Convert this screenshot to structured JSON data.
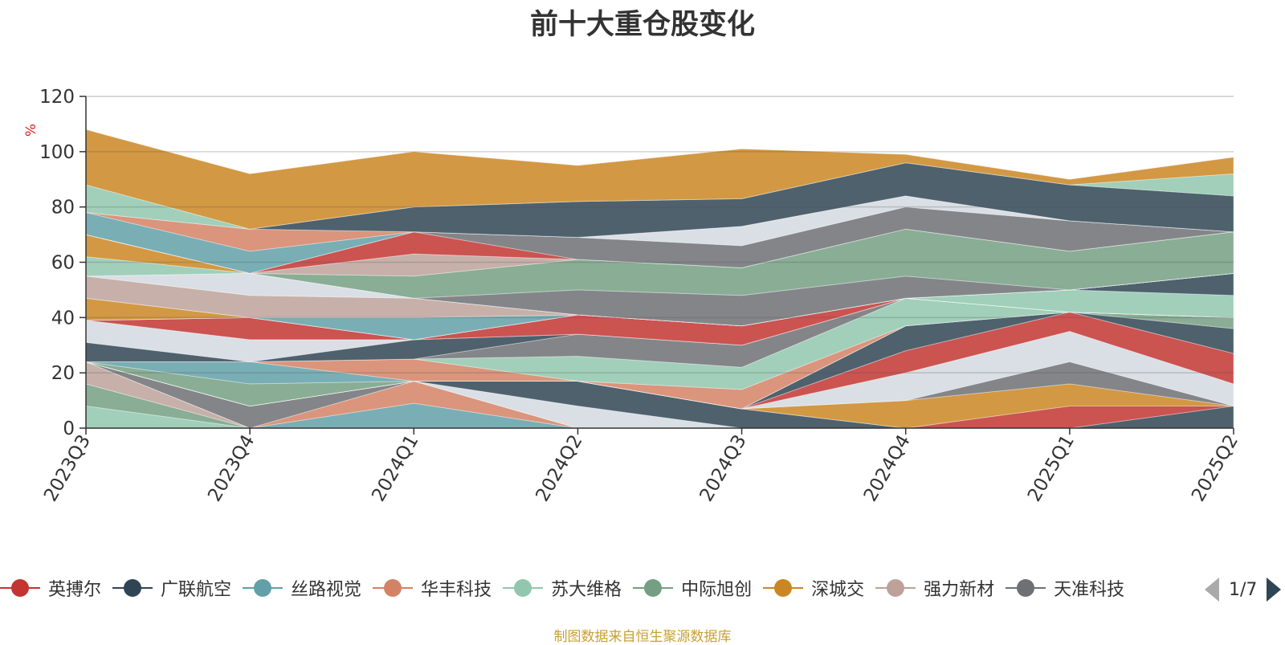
{
  "title": "前十大重仓股变化",
  "source": "制图数据来自恒生聚源数据库",
  "legend_page": "1/7",
  "legend_visible": [
    "英搏尔",
    "广联航空",
    "丝路视觉",
    "华丰科技",
    "苏大维格",
    "中际旭创",
    "深城交",
    "强力新材",
    "天准科技"
  ],
  "legend_colors": [
    "#c23531",
    "#2f4554",
    "#61a0a8",
    "#d48265",
    "#91c7ae",
    "#749f83",
    "#ca8622",
    "#bda29a",
    "#6e7074"
  ],
  "chart_data": {
    "type": "area",
    "stacked": true,
    "categories": [
      "2023Q3",
      "2023Q4",
      "2024Q1",
      "2024Q2",
      "2024Q3",
      "2024Q4",
      "2025Q1",
      "2025Q2"
    ],
    "ylabel": "%",
    "ylim": [
      0,
      120
    ],
    "yticks": [
      0,
      20,
      40,
      60,
      80,
      100,
      120
    ],
    "legend_position": "bottom",
    "series": [
      {
        "name": "苏大维格",
        "color": "#91c7ae",
        "values": [
          8,
          0,
          0,
          0,
          0,
          0,
          0,
          0
        ]
      },
      {
        "name": "中际旭创",
        "color": "#749f83",
        "values": [
          8,
          0,
          0,
          0,
          0,
          0,
          0,
          0
        ]
      },
      {
        "name": "强力新材",
        "color": "#bda29a",
        "values": [
          8,
          0,
          0,
          0,
          0,
          0,
          0,
          0
        ]
      },
      {
        "name": "丝路视觉",
        "color": "#61a0a8",
        "values": [
          0,
          0,
          9,
          0,
          0,
          0,
          0,
          0
        ]
      },
      {
        "name": "华丰科技",
        "color": "#d48265",
        "values": [
          0,
          0,
          8,
          0,
          0,
          0,
          0,
          0
        ]
      },
      {
        "name": "天准科技",
        "color": "#6e7074",
        "values": [
          0,
          8,
          0,
          0,
          0,
          0,
          0,
          0
        ]
      },
      {
        "name": "",
        "color": "#d4d9e0",
        "values": [
          0,
          0,
          0,
          8,
          0,
          0,
          0,
          0
        ]
      },
      {
        "name": "广联航空",
        "color": "#2f4554",
        "values": [
          0,
          0,
          0,
          9,
          7,
          0,
          0,
          8
        ]
      },
      {
        "name": "英搏尔",
        "color": "#c23531",
        "values": [
          0,
          0,
          0,
          0,
          0,
          0,
          8,
          0
        ]
      },
      {
        "name": "深城交",
        "color": "#ca8622",
        "values": [
          0,
          0,
          0,
          0,
          0,
          10,
          8,
          0
        ]
      },
      {
        "name": "",
        "color": "#6e7074",
        "values": [
          0,
          0,
          0,
          0,
          0,
          0,
          8,
          0
        ]
      },
      {
        "name": "",
        "color": "#d4d9e0",
        "values": [
          0,
          0,
          0,
          0,
          0,
          10,
          11,
          8
        ]
      },
      {
        "name": "",
        "color": "#c23531",
        "values": [
          0,
          0,
          0,
          0,
          0,
          8,
          7,
          11
        ]
      },
      {
        "name": "",
        "color": "#2f4554",
        "values": [
          0,
          0,
          0,
          0,
          0,
          9,
          0,
          9
        ]
      },
      {
        "name": "",
        "color": "#749f83",
        "values": [
          0,
          8,
          0,
          0,
          0,
          0,
          0,
          4
        ]
      },
      {
        "name": "",
        "color": "#61a0a8",
        "values": [
          0,
          8,
          0,
          0,
          0,
          0,
          0,
          0
        ]
      },
      {
        "name": "",
        "color": "#d48265",
        "values": [
          0,
          0,
          8,
          0,
          7,
          0,
          0,
          0
        ]
      },
      {
        "name": "",
        "color": "#91c7ae",
        "values": [
          0,
          0,
          0,
          9,
          8,
          10,
          0,
          0
        ]
      },
      {
        "name": "",
        "color": "#6e7074",
        "values": [
          0,
          0,
          0,
          8,
          8,
          0,
          0,
          0
        ]
      },
      {
        "name": "",
        "color": "#2f4554",
        "values": [
          7,
          0,
          7,
          0,
          0,
          0,
          0,
          0
        ]
      },
      {
        "name": "",
        "color": "#d4d9e0",
        "values": [
          8,
          8,
          0,
          0,
          0,
          0,
          0,
          0
        ]
      },
      {
        "name": "",
        "color": "#c23531",
        "values": [
          0,
          8,
          0,
          7,
          7,
          0,
          0,
          0
        ]
      },
      {
        "name": "",
        "color": "#d48265",
        "values": [
          0,
          0,
          0,
          0,
          0,
          0,
          0,
          0
        ]
      },
      {
        "name": "",
        "color": "#91c7ae",
        "values": [
          0,
          0,
          0,
          0,
          0,
          0,
          8,
          8
        ]
      },
      {
        "name": "",
        "color": "#2f4554",
        "values": [
          0,
          0,
          0,
          0,
          0,
          0,
          0,
          8
        ]
      },
      {
        "name": "",
        "color": "#ca8622",
        "values": [
          8,
          0,
          0,
          0,
          0,
          0,
          0,
          0
        ]
      },
      {
        "name": "",
        "color": "#61a0a8",
        "values": [
          0,
          0,
          8,
          0,
          0,
          0,
          0,
          0
        ]
      },
      {
        "name": "",
        "color": "#bda29a",
        "values": [
          8,
          8,
          7,
          0,
          0,
          0,
          0,
          0
        ]
      },
      {
        "name": "",
        "color": "#d4d9e0",
        "values": [
          0,
          8,
          0,
          0,
          0,
          0,
          0,
          0
        ]
      },
      {
        "name": "",
        "color": "#91c7ae",
        "values": [
          7,
          0,
          0,
          0,
          0,
          0,
          0,
          0
        ]
      },
      {
        "name": "",
        "color": "#ca8622",
        "values": [
          8,
          0,
          0,
          0,
          0,
          0,
          0,
          0
        ]
      },
      {
        "name": "",
        "color": "#6e7074",
        "values": [
          0,
          0,
          0,
          9,
          11,
          8,
          0,
          0
        ]
      },
      {
        "name": "",
        "color": "#749f83",
        "values": [
          0,
          0,
          8,
          11,
          10,
          17,
          14,
          15
        ]
      },
      {
        "name": "",
        "color": "#bda29a",
        "values": [
          0,
          0,
          8,
          0,
          0,
          0,
          0,
          0
        ]
      },
      {
        "name": "",
        "color": "#c23531",
        "values": [
          0,
          0,
          8,
          0,
          0,
          0,
          0,
          0
        ]
      },
      {
        "name": "",
        "color": "#6e7074",
        "values": [
          0,
          0,
          0,
          8,
          8,
          8,
          11,
          0
        ]
      },
      {
        "name": "",
        "color": "#d4d9e0",
        "values": [
          0,
          0,
          0,
          0,
          7,
          4,
          0,
          0
        ]
      },
      {
        "name": "",
        "color": "#61a0a8",
        "values": [
          8,
          8,
          0,
          0,
          0,
          0,
          0,
          0
        ]
      },
      {
        "name": "",
        "color": "#d48265",
        "values": [
          0,
          8,
          0,
          0,
          0,
          0,
          0,
          0
        ]
      },
      {
        "name": "",
        "color": "#2f4554",
        "values": [
          0,
          0,
          9,
          13,
          10,
          12,
          13,
          13
        ]
      },
      {
        "name": "",
        "color": "#91c7ae",
        "values": [
          10,
          0,
          0,
          0,
          0,
          0,
          0,
          8
        ]
      },
      {
        "name": "",
        "color": "#ca8622",
        "values": [
          20,
          20,
          20,
          13,
          18,
          3,
          2,
          6
        ]
      }
    ]
  }
}
